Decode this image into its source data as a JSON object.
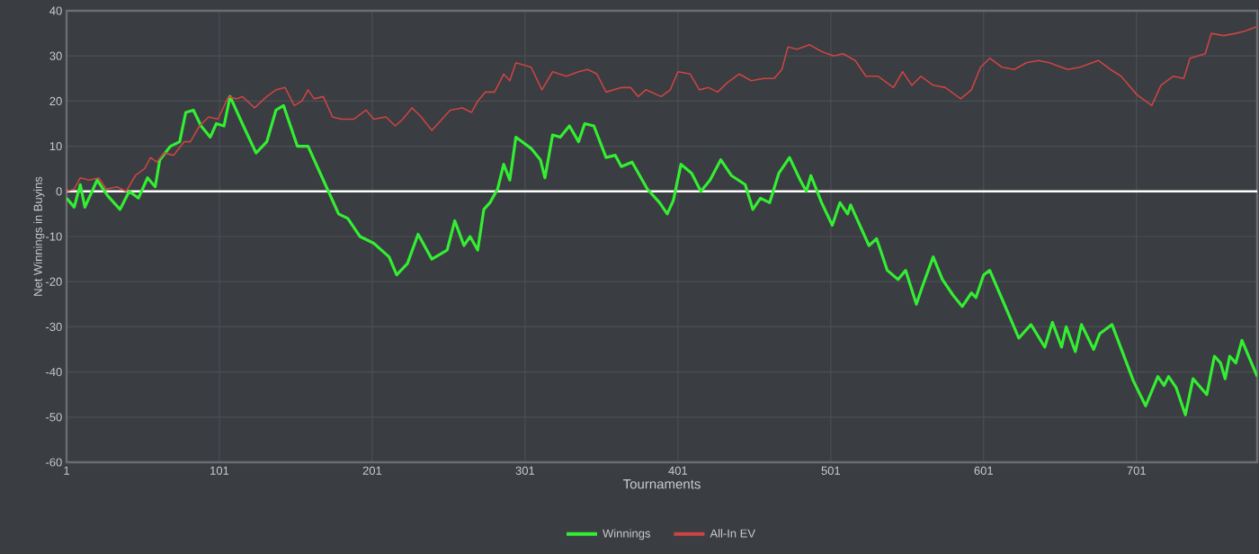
{
  "chart_data": {
    "type": "line",
    "xlabel": "Tournaments",
    "ylabel": "Net Winnings in Buyins",
    "xlim": [
      1,
      780
    ],
    "ylim": [
      -60,
      40
    ],
    "xticks": [
      1,
      101,
      201,
      301,
      401,
      501,
      601,
      701
    ],
    "yticks": [
      -60,
      -50,
      -40,
      -30,
      -20,
      -10,
      0,
      10,
      20,
      30,
      40
    ],
    "grid": true,
    "legend": "bottom",
    "ref_lines": [
      {
        "axis": "y",
        "value": 0,
        "color": "#ffffff"
      }
    ],
    "series": [
      {
        "name": "Winnings",
        "color": "#33ee33",
        "x": [
          1,
          6,
          10,
          13,
          21,
          28,
          36,
          42,
          48,
          54,
          59,
          62,
          69,
          75,
          79,
          84,
          89,
          95,
          99,
          104,
          108,
          116,
          125,
          132,
          138,
          143,
          152,
          159,
          167,
          179,
          185,
          189,
          193,
          202,
          212,
          217,
          224,
          231,
          240,
          250,
          255,
          261,
          265,
          270,
          274,
          278,
          283,
          287,
          291,
          295,
          305,
          311,
          314,
          319,
          324,
          330,
          336,
          340,
          346,
          354,
          360,
          364,
          371,
          376,
          381,
          389,
          394,
          398,
          403,
          410,
          416,
          422,
          429,
          436,
          445,
          450,
          455,
          461,
          467,
          474,
          481,
          485,
          488,
          495,
          502,
          507,
          512,
          514,
          526,
          531,
          538,
          545,
          550,
          557,
          561,
          568,
          574,
          581,
          587,
          593,
          596,
          601,
          605,
          612,
          624,
          632,
          641,
          646,
          652,
          655,
          661,
          665,
          673,
          677,
          685,
          699,
          707,
          715,
          719,
          722,
          727,
          733,
          738,
          747,
          752,
          756,
          759,
          762,
          766,
          770,
          775,
          780
        ],
        "values": [
          -1.5,
          -3.5,
          1.5,
          -3.5,
          2.5,
          -1,
          -4,
          0,
          -1.5,
          3,
          1,
          7,
          10,
          11,
          17.5,
          18,
          14.5,
          12,
          15,
          14.5,
          21,
          15,
          8.5,
          11,
          18,
          19,
          10,
          10,
          4,
          -5,
          -6,
          -8,
          -10,
          -11.5,
          -14.5,
          -18.5,
          -16,
          -9.5,
          -15,
          -13,
          -6.5,
          -12,
          -10,
          -13,
          -4,
          -2.5,
          0.5,
          6,
          2.5,
          12,
          9.5,
          7,
          3,
          12.5,
          12,
          14.5,
          11,
          15,
          14.5,
          7.5,
          8,
          5.5,
          6.5,
          3.5,
          0.5,
          -2.5,
          -5,
          -2,
          6,
          4,
          0,
          2.5,
          7,
          3.5,
          1.5,
          -4,
          -1.5,
          -2.5,
          4,
          7.5,
          2.5,
          0,
          3.5,
          -2.5,
          -7.5,
          -2.5,
          -5,
          -3,
          -12,
          -10.5,
          -17.5,
          -19.5,
          -17.5,
          -25,
          -21,
          -14.5,
          -19.5,
          -23,
          -25.5,
          -22.5,
          -23.5,
          -18.5,
          -17.5,
          -23,
          -32.5,
          -29.5,
          -34.5,
          -29,
          -34.5,
          -30,
          -35.5,
          -29.5,
          -35,
          -31.5,
          -29.5,
          -42,
          -47.5,
          -41,
          -43,
          -41,
          -43.5,
          -49.5,
          -41.5,
          -45,
          -36.5,
          -38,
          -41.5,
          -36.5,
          -38,
          -33,
          -37,
          -41
        ]
      },
      {
        "name": "All-In EV",
        "color": "#cc4444",
        "x": [
          1,
          6,
          10,
          16,
          22,
          27,
          34,
          40,
          46,
          52,
          56,
          60,
          65,
          71,
          78,
          82,
          88,
          94,
          100,
          107,
          112,
          116,
          124,
          132,
          138,
          144,
          150,
          155,
          159,
          163,
          169,
          175,
          181,
          189,
          197,
          202,
          210,
          216,
          221,
          227,
          233,
          240,
          252,
          260,
          266,
          270,
          275,
          281,
          287,
          291,
          295,
          305,
          312,
          319,
          328,
          336,
          342,
          348,
          354,
          364,
          370,
          375,
          380,
          390,
          396,
          401,
          409,
          415,
          421,
          427,
          433,
          441,
          449,
          457,
          464,
          469,
          473,
          479,
          487,
          495,
          503,
          509,
          517,
          524,
          532,
          542,
          548,
          554,
          560,
          568,
          576,
          586,
          593,
          599,
          605,
          613,
          621,
          629,
          637,
          644,
          656,
          664,
          676,
          684,
          691,
          701,
          711,
          717,
          725,
          732,
          736,
          746,
          750,
          758,
          766,
          772,
          780
        ],
        "values": [
          0,
          0.5,
          3,
          2.5,
          3,
          0.5,
          1,
          0,
          3.5,
          5,
          7.5,
          6.5,
          8.5,
          8,
          11,
          11,
          14.5,
          16.5,
          16,
          21,
          20.5,
          21,
          18.5,
          21,
          22.5,
          23,
          19,
          20,
          22.5,
          20.5,
          21,
          16.5,
          16,
          16,
          18,
          16,
          16.5,
          14.5,
          16,
          18.5,
          16.5,
          13.5,
          18,
          18.5,
          17.5,
          20,
          22,
          22,
          26,
          24.5,
          28.5,
          27.5,
          22.5,
          26.5,
          25.5,
          26.5,
          27,
          26,
          22,
          23,
          23,
          21,
          22.5,
          21,
          22.5,
          26.5,
          26,
          22.5,
          23,
          22,
          24,
          26,
          24.5,
          25,
          25,
          27,
          32,
          31.5,
          32.5,
          31,
          30,
          30.5,
          29,
          25.5,
          25.5,
          23,
          26.5,
          23.5,
          25.5,
          23.5,
          23,
          20.5,
          22.5,
          27.5,
          29.5,
          27.5,
          27,
          28.5,
          29,
          28.5,
          27,
          27.5,
          29,
          27,
          25.5,
          21.5,
          19,
          23.5,
          25.5,
          25,
          29.5,
          30.5,
          35,
          34.5,
          35,
          35.5,
          36.5
        ]
      }
    ]
  }
}
